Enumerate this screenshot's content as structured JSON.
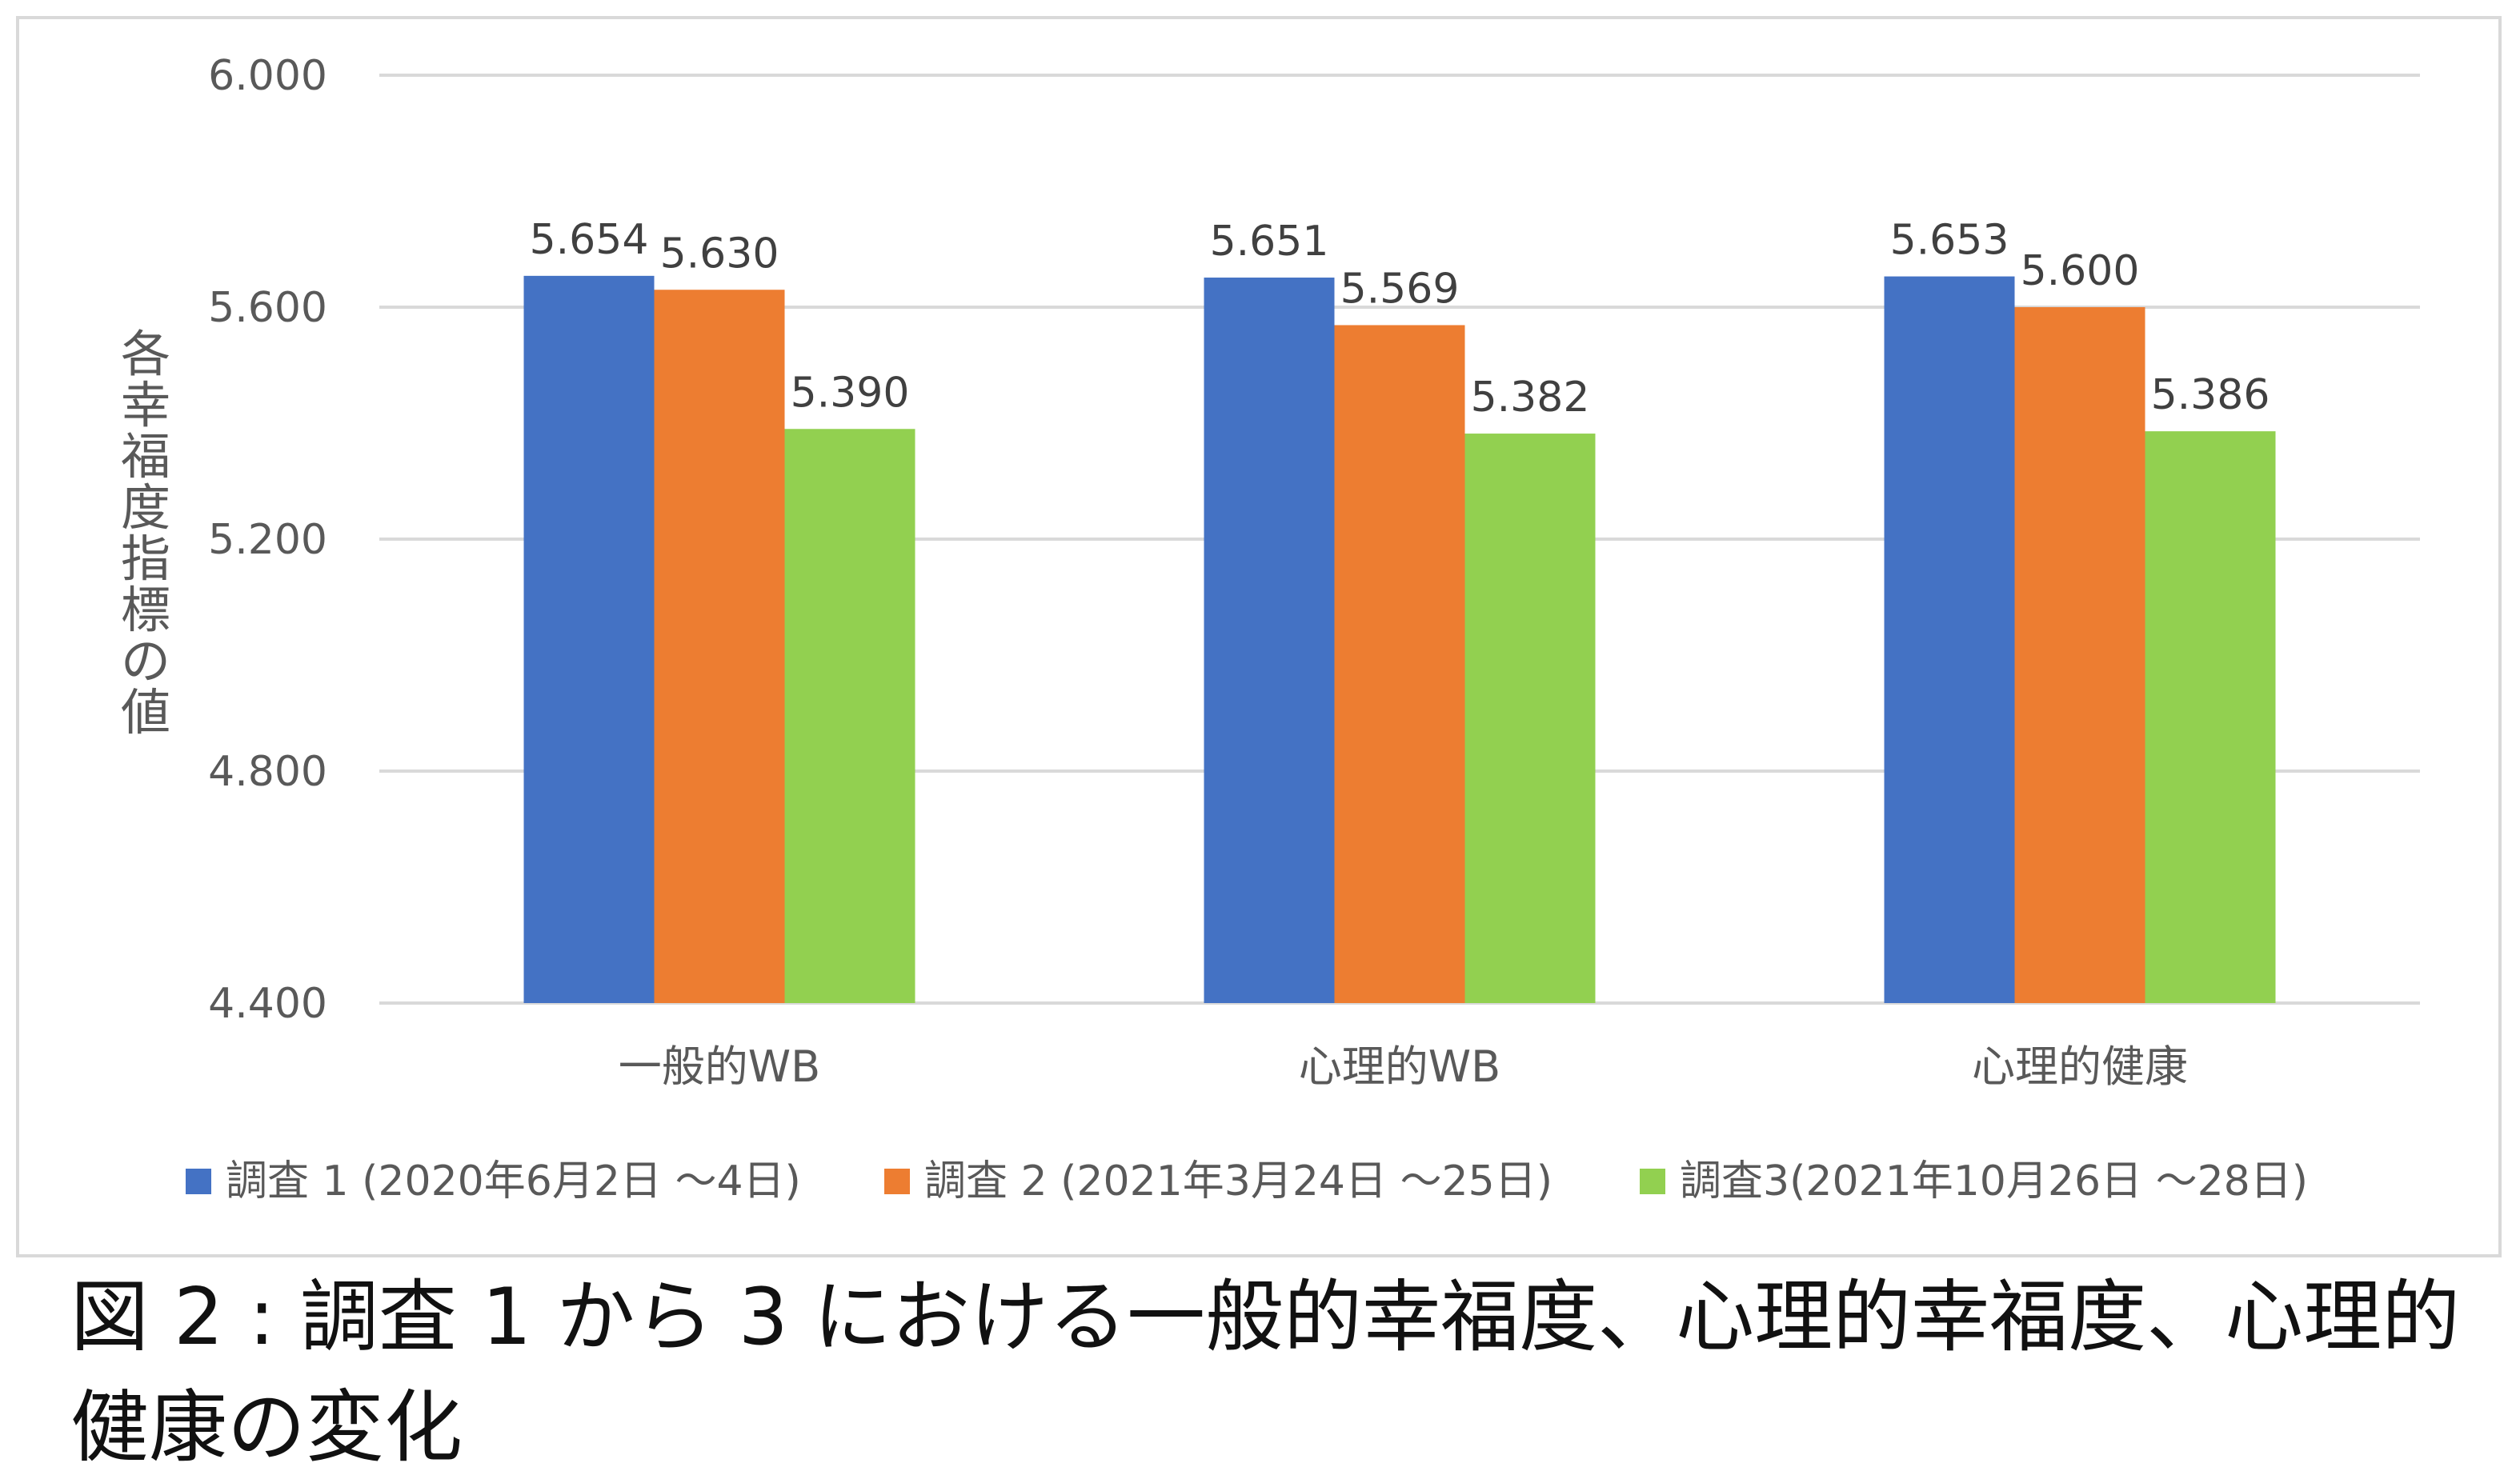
{
  "chart_data": {
    "type": "bar",
    "categories": [
      "一般的WB",
      "心理的WB",
      "心理的健康"
    ],
    "series": [
      {
        "name": "調査 1 (2020年6月2日 〜4日)",
        "values": [
          5.654,
          5.651,
          5.653
        ],
        "color": "#4472C4"
      },
      {
        "name": "調査 2 (2021年3月24日 〜25日)",
        "values": [
          5.63,
          5.569,
          5.6
        ],
        "color": "#ED7D31"
      },
      {
        "name": "調査3(2021年10月26日 〜28日)",
        "values": [
          5.39,
          5.382,
          5.386
        ],
        "color": "#92D050"
      }
    ],
    "data_labels": [
      [
        "5.654",
        "5.651",
        "5.653"
      ],
      [
        "5.630",
        "5.569",
        "5.600"
      ],
      [
        "5.390",
        "5.382",
        "5.386"
      ]
    ],
    "yticks": [
      "4.400",
      "4.800",
      "5.200",
      "5.600",
      "6.000"
    ],
    "ylim": [
      4.4,
      6.0
    ],
    "ylabel": "各幸福度指標の値",
    "grid": true,
    "legend_position": "bottom"
  },
  "caption": "図 2 : 調査 1 から 3 における一般的幸福度、心理的幸福度、心理的健康の変化"
}
